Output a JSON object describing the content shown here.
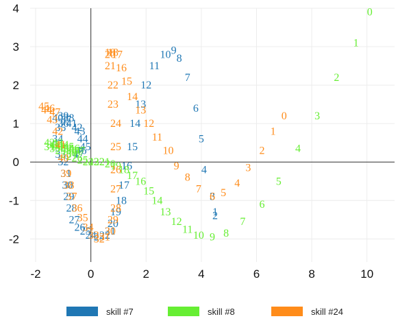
{
  "chart_data": {
    "type": "scatter",
    "title": "",
    "xlabel": "",
    "ylabel": "",
    "xlim": [
      -2.2,
      11
    ],
    "ylim": [
      -2.6,
      4
    ],
    "grid": true,
    "legend_position": "bottom",
    "x_ticks": [
      -2,
      0,
      2,
      4,
      6,
      8,
      10
    ],
    "y_ticks": [
      -2,
      -1,
      0,
      1,
      2,
      3,
      4
    ],
    "x_tick_labels": [
      "-2",
      "0",
      "2",
      "4",
      "6",
      "8",
      "10"
    ],
    "y_tick_labels": [
      "-2",
      "-1",
      "0",
      "1",
      "2",
      "3",
      "4"
    ],
    "series": [
      {
        "name": "skill #7",
        "color": "#1f77b4",
        "points": [
          {
            "label": "1",
            "x": 4.5,
            "y": -1.3
          },
          {
            "label": "2",
            "x": 4.5,
            "y": -1.4
          },
          {
            "label": "3",
            "x": 4.4,
            "y": -0.9
          },
          {
            "label": "4",
            "x": 4.1,
            "y": -0.2
          },
          {
            "label": "5",
            "x": 4.0,
            "y": 0.6
          },
          {
            "label": "6",
            "x": 3.8,
            "y": 1.4
          },
          {
            "label": "7",
            "x": 3.5,
            "y": 2.2
          },
          {
            "label": "8",
            "x": 3.2,
            "y": 2.7
          },
          {
            "label": "9",
            "x": 3.0,
            "y": 2.9
          },
          {
            "label": "10",
            "x": 2.7,
            "y": 2.8
          },
          {
            "label": "11",
            "x": 2.3,
            "y": 2.5
          },
          {
            "label": "12",
            "x": 2.0,
            "y": 2.0
          },
          {
            "label": "13",
            "x": 1.8,
            "y": 1.5
          },
          {
            "label": "14",
            "x": 1.6,
            "y": 1.0
          },
          {
            "label": "15",
            "x": 1.5,
            "y": 0.4
          },
          {
            "label": "16",
            "x": 1.3,
            "y": -0.1
          },
          {
            "label": "17",
            "x": 1.2,
            "y": -0.6
          },
          {
            "label": "18",
            "x": 1.1,
            "y": -1.0
          },
          {
            "label": "19",
            "x": 0.9,
            "y": -1.3
          },
          {
            "label": "20",
            "x": 0.8,
            "y": -1.6
          },
          {
            "label": "21",
            "x": 0.7,
            "y": -1.8
          },
          {
            "label": "22",
            "x": 0.5,
            "y": -1.9
          },
          {
            "label": "23",
            "x": 0.3,
            "y": -1.95
          },
          {
            "label": "24",
            "x": 0.0,
            "y": -1.9
          },
          {
            "label": "25",
            "x": -0.2,
            "y": -1.8
          },
          {
            "label": "26",
            "x": -0.4,
            "y": -1.7
          },
          {
            "label": "27",
            "x": -0.6,
            "y": -1.5
          },
          {
            "label": "28",
            "x": -0.7,
            "y": -1.2
          },
          {
            "label": "29",
            "x": -0.8,
            "y": -0.9
          },
          {
            "label": "30",
            "x": -0.85,
            "y": -0.6
          },
          {
            "label": "31",
            "x": -0.9,
            "y": -0.3
          },
          {
            "label": "32",
            "x": -1.0,
            "y": 0.0
          },
          {
            "label": "33",
            "x": -1.1,
            "y": 0.2
          },
          {
            "label": "34",
            "x": -1.2,
            "y": 0.6
          },
          {
            "label": "35",
            "x": -1.1,
            "y": 0.9
          },
          {
            "label": "36",
            "x": -1.0,
            "y": 1.0
          },
          {
            "label": "37",
            "x": -0.9,
            "y": 1.1
          },
          {
            "label": "38",
            "x": -0.8,
            "y": 1.15
          },
          {
            "label": "39",
            "x": -1.0,
            "y": 1.2
          },
          {
            "label": "40",
            "x": -1.2,
            "y": 1.15
          },
          {
            "label": "41",
            "x": -0.7,
            "y": 1.0
          },
          {
            "label": "42",
            "x": -0.5,
            "y": 0.9
          },
          {
            "label": "43",
            "x": -0.4,
            "y": 0.8
          },
          {
            "label": "44",
            "x": -0.3,
            "y": 0.6
          },
          {
            "label": "45",
            "x": -0.2,
            "y": 0.4
          },
          {
            "label": "46",
            "x": -0.35,
            "y": 0.3
          },
          {
            "label": "47",
            "x": -0.45,
            "y": 0.2
          }
        ]
      },
      {
        "name": "skill #8",
        "color": "#66ee33",
        "points": [
          {
            "label": "0",
            "x": 10.1,
            "y": 3.9
          },
          {
            "label": "1",
            "x": 9.6,
            "y": 3.1
          },
          {
            "label": "2",
            "x": 8.9,
            "y": 2.2
          },
          {
            "label": "3",
            "x": 8.2,
            "y": 1.2
          },
          {
            "label": "4",
            "x": 7.5,
            "y": 0.35
          },
          {
            "label": "5",
            "x": 6.8,
            "y": -0.5
          },
          {
            "label": "6",
            "x": 6.2,
            "y": -1.1
          },
          {
            "label": "7",
            "x": 5.5,
            "y": -1.55
          },
          {
            "label": "8",
            "x": 4.9,
            "y": -1.85
          },
          {
            "label": "9",
            "x": 4.4,
            "y": -1.95
          },
          {
            "label": "10",
            "x": 3.9,
            "y": -1.9
          },
          {
            "label": "11",
            "x": 3.5,
            "y": -1.75
          },
          {
            "label": "12",
            "x": 3.1,
            "y": -1.55
          },
          {
            "label": "13",
            "x": 2.7,
            "y": -1.3
          },
          {
            "label": "14",
            "x": 2.4,
            "y": -1.0
          },
          {
            "label": "15",
            "x": 2.1,
            "y": -0.75
          },
          {
            "label": "16",
            "x": 1.8,
            "y": -0.5
          },
          {
            "label": "17",
            "x": 1.5,
            "y": -0.35
          },
          {
            "label": "18",
            "x": 1.2,
            "y": -0.2
          },
          {
            "label": "19",
            "x": 0.9,
            "y": -0.1
          },
          {
            "label": "20",
            "x": 0.7,
            "y": -0.05
          },
          {
            "label": "21",
            "x": 0.5,
            "y": 0.0
          },
          {
            "label": "22",
            "x": 0.3,
            "y": 0.0
          },
          {
            "label": "23",
            "x": 0.1,
            "y": 0.0
          },
          {
            "label": "24",
            "x": -0.1,
            "y": 0.0
          },
          {
            "label": "25",
            "x": -0.3,
            "y": 0.05
          },
          {
            "label": "26",
            "x": -0.5,
            "y": 0.1
          },
          {
            "label": "27",
            "x": -0.7,
            "y": 0.15
          },
          {
            "label": "28",
            "x": -0.9,
            "y": 0.2
          },
          {
            "label": "29",
            "x": -1.1,
            "y": 0.3
          },
          {
            "label": "30",
            "x": -1.3,
            "y": 0.35
          },
          {
            "label": "31",
            "x": -1.5,
            "y": 0.4
          },
          {
            "label": "32",
            "x": -1.4,
            "y": 0.45
          },
          {
            "label": "33",
            "x": -1.2,
            "y": 0.45
          },
          {
            "label": "34",
            "x": -1.0,
            "y": 0.4
          },
          {
            "label": "35",
            "x": -0.8,
            "y": 0.35
          },
          {
            "label": "36",
            "x": -0.6,
            "y": 0.3
          },
          {
            "label": "37",
            "x": -0.5,
            "y": 0.25
          },
          {
            "label": "38",
            "x": -0.7,
            "y": 0.3
          },
          {
            "label": "39",
            "x": -0.9,
            "y": 0.35
          },
          {
            "label": "40",
            "x": -1.1,
            "y": 0.4
          },
          {
            "label": "41",
            "x": -1.3,
            "y": 0.45
          },
          {
            "label": "42",
            "x": -1.5,
            "y": 0.5
          },
          {
            "label": "43",
            "x": -1.2,
            "y": 0.5
          },
          {
            "label": "44",
            "x": -1.0,
            "y": 0.45
          },
          {
            "label": "45",
            "x": -0.8,
            "y": 0.4
          },
          {
            "label": "46",
            "x": -0.6,
            "y": 0.35
          },
          {
            "label": "47",
            "x": -0.4,
            "y": 0.3
          }
        ]
      },
      {
        "name": "skill #24",
        "color": "#ff8c1a",
        "points": [
          {
            "label": "0",
            "x": 7.0,
            "y": 1.2
          },
          {
            "label": "1",
            "x": 6.6,
            "y": 0.8
          },
          {
            "label": "2",
            "x": 6.2,
            "y": 0.3
          },
          {
            "label": "3",
            "x": 5.7,
            "y": -0.15
          },
          {
            "label": "4",
            "x": 5.3,
            "y": -0.55
          },
          {
            "label": "5",
            "x": 4.8,
            "y": -0.8
          },
          {
            "label": "6",
            "x": 4.4,
            "y": -0.9
          },
          {
            "label": "7",
            "x": 3.9,
            "y": -0.7
          },
          {
            "label": "8",
            "x": 3.5,
            "y": -0.4
          },
          {
            "label": "9",
            "x": 3.1,
            "y": -0.1
          },
          {
            "label": "10",
            "x": 2.8,
            "y": 0.3
          },
          {
            "label": "11",
            "x": 2.4,
            "y": 0.65
          },
          {
            "label": "12",
            "x": 2.1,
            "y": 1.0
          },
          {
            "label": "13",
            "x": 1.8,
            "y": 1.35
          },
          {
            "label": "14",
            "x": 1.5,
            "y": 1.7
          },
          {
            "label": "15",
            "x": 1.3,
            "y": 2.1
          },
          {
            "label": "16",
            "x": 1.1,
            "y": 2.45
          },
          {
            "label": "17",
            "x": 0.95,
            "y": 2.8
          },
          {
            "label": "18",
            "x": 0.8,
            "y": 2.85
          },
          {
            "label": "19",
            "x": 0.7,
            "y": 2.85
          },
          {
            "label": "20",
            "x": 0.7,
            "y": 2.8
          },
          {
            "label": "21",
            "x": 0.7,
            "y": 2.5
          },
          {
            "label": "22",
            "x": 0.8,
            "y": 2.0
          },
          {
            "label": "23",
            "x": 0.8,
            "y": 1.5
          },
          {
            "label": "24",
            "x": 0.9,
            "y": 1.0
          },
          {
            "label": "25",
            "x": 0.9,
            "y": 0.4
          },
          {
            "label": "26",
            "x": 0.9,
            "y": -0.2
          },
          {
            "label": "27",
            "x": 0.9,
            "y": -0.7
          },
          {
            "label": "28",
            "x": 0.9,
            "y": -1.2
          },
          {
            "label": "29",
            "x": 0.8,
            "y": -1.5
          },
          {
            "label": "30",
            "x": 0.7,
            "y": -1.8
          },
          {
            "label": "31",
            "x": 0.5,
            "y": -1.95
          },
          {
            "label": "32",
            "x": 0.3,
            "y": -2.0
          },
          {
            "label": "33",
            "x": 0.1,
            "y": -1.9
          },
          {
            "label": "34",
            "x": -0.1,
            "y": -1.7
          },
          {
            "label": "35",
            "x": -0.3,
            "y": -1.45
          },
          {
            "label": "36",
            "x": -0.5,
            "y": -1.2
          },
          {
            "label": "37",
            "x": -0.7,
            "y": -0.9
          },
          {
            "label": "38",
            "x": -0.8,
            "y": -0.6
          },
          {
            "label": "39",
            "x": -0.9,
            "y": -0.3
          },
          {
            "label": "40",
            "x": -1.0,
            "y": 0.1
          },
          {
            "label": "41",
            "x": -1.1,
            "y": 0.45
          },
          {
            "label": "42",
            "x": -1.2,
            "y": 0.8
          },
          {
            "label": "43",
            "x": -1.4,
            "y": 1.1
          },
          {
            "label": "44",
            "x": -1.6,
            "y": 1.35
          },
          {
            "label": "45",
            "x": -1.7,
            "y": 1.45
          },
          {
            "label": "46",
            "x": -1.5,
            "y": 1.4
          },
          {
            "label": "47",
            "x": -1.3,
            "y": 1.3
          }
        ]
      }
    ]
  },
  "legend": {
    "items": [
      {
        "label": "skill #7",
        "color": "#1f77b4"
      },
      {
        "label": "skill #8",
        "color": "#66ee33"
      },
      {
        "label": "skill #24",
        "color": "#ff8c1a"
      }
    ]
  }
}
